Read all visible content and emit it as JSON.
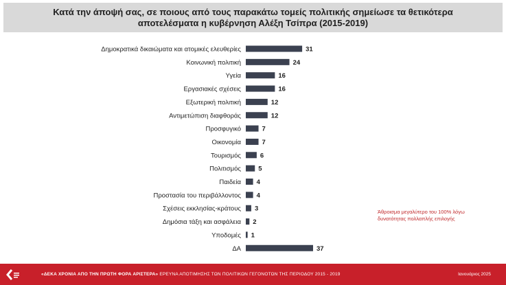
{
  "header": {
    "title": "Κατά την άποψή σας, σε ποιους από τους παρακάτω τομείς πολιτικής σημείωσε τα θετικότερα αποτελέσματα η κυβέρνηση Αλέξη Τσίπρα (2015-2019)"
  },
  "note": "Άθροισμα μεγαλύτερο του 100% λόγω δυνατότητας πολλαπλής επιλογής",
  "footer": {
    "series_title": "«ΔΕΚΑ ΧΡΟΝΙΑ ΑΠΟ ΤΗΝ ΠΡΩΤΗ ΦΟΡΑ ΑΡΙΣΤΕΡΑ»",
    "subtitle": "ΕΡΕΥΝΑ ΑΠΟΤΙΜΗΣΗΣ ΤΩΝ ΠΟΛΙΤΙΚΩΝ ΓΕΓΟΝΟΤΩΝ ΤΗΣ ΠΕΡΙΟΔΟΥ 2015 - 2019",
    "date": "Ιανουάριος 2025"
  },
  "colors": {
    "bar": "#3b4150",
    "header_bg": "#d9d9d9",
    "footer_bg": "#c8202a",
    "note": "#c0282a"
  },
  "chart_data": {
    "type": "bar",
    "orientation": "horizontal",
    "title": "Κατά την άποψή σας, σε ποιους από τους παρακάτω τομείς πολιτικής σημείωσε τα θετικότερα αποτελέσματα η κυβέρνηση Αλέξη Τσίπρα (2015-2019)",
    "categories": [
      "Δημοκρατικά δικαιώματα και ατομικές ελευθερίες",
      "Κοινωνική πολιτική",
      "Υγεία",
      "Εργασιακές σχέσεις",
      "Εξωτερική πολιτική",
      "Αντιμετώπιση διαφθοράς",
      "Προσφυγικό",
      "Οικονομία",
      "Τουρισμός",
      "Πολιτισμός",
      "Παιδεία",
      "Προστασία του περιβάλλοντος",
      "Σχέσεις εκκλησίας-κράτους",
      "Δημόσια τάξη και ασφάλεια",
      "Υποδομές",
      "ΔΑ"
    ],
    "values": [
      31,
      24,
      16,
      16,
      12,
      12,
      7,
      7,
      6,
      5,
      4,
      4,
      3,
      2,
      1,
      37
    ],
    "xlim": [
      0,
      37
    ],
    "grid": false,
    "xlabel": "",
    "ylabel": ""
  }
}
